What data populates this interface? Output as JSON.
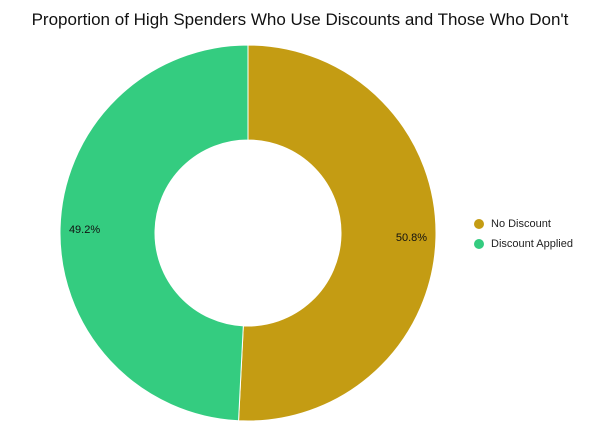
{
  "chart_data": {
    "type": "pie",
    "style": "donut",
    "title": "Proportion of High Spenders Who Use Discounts and Those Who Don't",
    "categories": [
      "No Discount",
      "Discount Applied"
    ],
    "values": [
      50.8,
      49.2
    ],
    "labels": [
      "50.8%",
      "49.2%"
    ],
    "colors": [
      "#c49c13",
      "#34cc80"
    ],
    "legend": "right",
    "grid": false
  }
}
